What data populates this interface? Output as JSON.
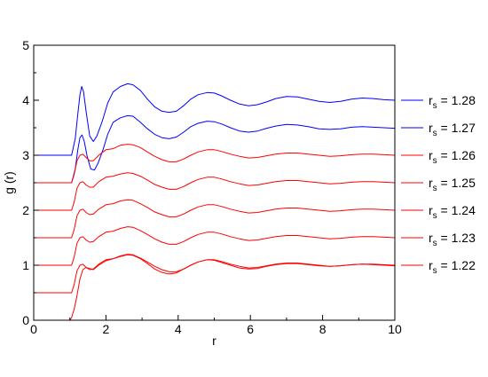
{
  "chart_data": {
    "type": "line",
    "xlabel": "r",
    "ylabel": "g (r)",
    "xlim": [
      0,
      10
    ],
    "ylim": [
      0,
      5
    ],
    "xticks": [
      "0",
      "2",
      "4",
      "6",
      "8",
      "10"
    ],
    "yticks": [
      "0",
      "1",
      "2",
      "3",
      "4",
      "5"
    ],
    "grid": false,
    "legend_position": "right",
    "colors": {
      "blue": "#0000ff",
      "red": "#ff0000"
    },
    "series": [
      {
        "name": "r_s = 1.28",
        "legend_base": "r",
        "legend_sub": "s",
        "legend_value": " = 1.28",
        "color": "#0000ff",
        "x": [
          0,
          1.05,
          1.15,
          1.22,
          1.28,
          1.33,
          1.38,
          1.45,
          1.55,
          1.65,
          1.75,
          1.9,
          2.05,
          2.2,
          2.4,
          2.6,
          2.75,
          2.95,
          3.15,
          3.35,
          3.55,
          3.75,
          3.95,
          4.15,
          4.35,
          4.55,
          4.8,
          5.0,
          5.2,
          5.45,
          5.7,
          5.95,
          6.2,
          6.45,
          6.7,
          7.0,
          7.3,
          7.6,
          7.9,
          8.2,
          8.5,
          8.8,
          9.1,
          9.4,
          9.7,
          10.0
        ],
        "y": [
          3.0,
          3.0,
          3.3,
          3.75,
          4.1,
          4.25,
          4.15,
          3.8,
          3.35,
          3.25,
          3.35,
          3.62,
          3.95,
          4.15,
          4.25,
          4.3,
          4.28,
          4.18,
          4.02,
          3.88,
          3.8,
          3.78,
          3.8,
          3.9,
          4.02,
          4.1,
          4.14,
          4.13,
          4.08,
          4.0,
          3.93,
          3.9,
          3.92,
          3.97,
          4.03,
          4.07,
          4.06,
          4.02,
          3.98,
          3.96,
          3.98,
          4.02,
          4.04,
          4.03,
          4.01,
          4.0
        ]
      },
      {
        "name": "r_s = 1.27",
        "legend_base": "r",
        "legend_sub": "s",
        "legend_value": " = 1.27",
        "color": "#0000ff",
        "x": [
          0,
          1.05,
          1.15,
          1.22,
          1.28,
          1.34,
          1.4,
          1.48,
          1.58,
          1.68,
          1.78,
          1.92,
          2.05,
          2.2,
          2.4,
          2.6,
          2.75,
          2.95,
          3.15,
          3.35,
          3.55,
          3.75,
          3.95,
          4.15,
          4.35,
          4.55,
          4.8,
          5.0,
          5.2,
          5.45,
          5.7,
          5.95,
          6.2,
          6.45,
          6.7,
          7.0,
          7.3,
          7.6,
          7.9,
          8.2,
          8.5,
          8.8,
          9.1,
          9.4,
          9.7,
          10.0
        ],
        "y": [
          2.5,
          2.5,
          2.75,
          3.1,
          3.32,
          3.37,
          3.25,
          2.98,
          2.75,
          2.73,
          2.85,
          3.1,
          3.38,
          3.6,
          3.68,
          3.72,
          3.71,
          3.6,
          3.48,
          3.38,
          3.32,
          3.3,
          3.33,
          3.42,
          3.52,
          3.58,
          3.62,
          3.61,
          3.57,
          3.5,
          3.44,
          3.42,
          3.44,
          3.49,
          3.53,
          3.56,
          3.55,
          3.52,
          3.48,
          3.47,
          3.48,
          3.51,
          3.52,
          3.51,
          3.5,
          3.49
        ]
      },
      {
        "name": "r_s = 1.26",
        "legend_base": "r",
        "legend_sub": "s",
        "legend_value": " = 1.26",
        "color": "#ff0000",
        "x": [
          0,
          1.05,
          1.12,
          1.2,
          1.28,
          1.36,
          1.45,
          1.55,
          1.65,
          1.8,
          2.0,
          2.2,
          2.4,
          2.6,
          2.75,
          2.95,
          3.15,
          3.35,
          3.55,
          3.75,
          3.95,
          4.15,
          4.35,
          4.55,
          4.8,
          5.0,
          5.2,
          5.45,
          5.7,
          5.95,
          6.2,
          6.45,
          6.7,
          7.0,
          7.3,
          7.6,
          7.9,
          8.2,
          8.5,
          8.8,
          9.1,
          9.4,
          9.7,
          10.0
        ],
        "y": [
          2.5,
          2.5,
          2.65,
          2.9,
          3.0,
          3.02,
          2.96,
          2.9,
          2.9,
          3.0,
          3.1,
          3.12,
          3.18,
          3.2,
          3.19,
          3.14,
          3.06,
          2.98,
          2.92,
          2.88,
          2.88,
          2.93,
          3.0,
          3.06,
          3.1,
          3.1,
          3.07,
          3.02,
          2.98,
          2.95,
          2.96,
          2.99,
          3.02,
          3.04,
          3.04,
          3.02,
          3.0,
          2.98,
          2.99,
          3.01,
          3.02,
          3.02,
          3.01,
          3.0
        ]
      },
      {
        "name": "r_s = 1.25",
        "legend_base": "r",
        "legend_sub": "s",
        "legend_value": " = 1.25",
        "color": "#ff0000",
        "x": [
          0,
          1.05,
          1.12,
          1.2,
          1.28,
          1.36,
          1.45,
          1.55,
          1.65,
          1.8,
          2.0,
          2.2,
          2.4,
          2.6,
          2.75,
          2.95,
          3.15,
          3.35,
          3.55,
          3.75,
          3.95,
          4.15,
          4.35,
          4.55,
          4.8,
          5.0,
          5.2,
          5.45,
          5.7,
          5.95,
          6.2,
          6.45,
          6.7,
          7.0,
          7.3,
          7.6,
          7.9,
          8.2,
          8.5,
          8.8,
          9.1,
          9.4,
          9.7,
          10.0
        ],
        "y": [
          2.0,
          2.0,
          2.15,
          2.4,
          2.5,
          2.52,
          2.46,
          2.42,
          2.42,
          2.52,
          2.6,
          2.62,
          2.66,
          2.68,
          2.67,
          2.62,
          2.55,
          2.47,
          2.42,
          2.38,
          2.38,
          2.43,
          2.5,
          2.56,
          2.6,
          2.6,
          2.57,
          2.52,
          2.48,
          2.45,
          2.46,
          2.49,
          2.52,
          2.54,
          2.54,
          2.52,
          2.5,
          2.48,
          2.49,
          2.51,
          2.52,
          2.52,
          2.51,
          2.5
        ]
      },
      {
        "name": "r_s = 1.24",
        "legend_base": "r",
        "legend_sub": "s",
        "legend_value": " = 1.24",
        "color": "#ff0000",
        "x": [
          0,
          1.05,
          1.12,
          1.2,
          1.28,
          1.36,
          1.45,
          1.55,
          1.65,
          1.8,
          2.0,
          2.2,
          2.4,
          2.6,
          2.75,
          2.95,
          3.15,
          3.35,
          3.55,
          3.75,
          3.95,
          4.15,
          4.35,
          4.55,
          4.8,
          5.0,
          5.2,
          5.45,
          5.7,
          5.95,
          6.2,
          6.45,
          6.7,
          7.0,
          7.3,
          7.6,
          7.9,
          8.2,
          8.5,
          8.8,
          9.1,
          9.4,
          9.7,
          10.0
        ],
        "y": [
          1.5,
          1.5,
          1.65,
          1.9,
          2.0,
          2.02,
          1.96,
          1.92,
          1.93,
          2.02,
          2.1,
          2.12,
          2.17,
          2.19,
          2.18,
          2.12,
          2.05,
          1.97,
          1.92,
          1.88,
          1.88,
          1.93,
          2.0,
          2.06,
          2.1,
          2.1,
          2.07,
          2.02,
          1.98,
          1.95,
          1.96,
          1.99,
          2.02,
          2.04,
          2.04,
          2.02,
          2.0,
          1.98,
          1.99,
          2.01,
          2.02,
          2.02,
          2.01,
          2.0
        ]
      },
      {
        "name": "r_s = 1.23",
        "legend_base": "r",
        "legend_sub": "s",
        "legend_value": " = 1.23",
        "color": "#ff0000",
        "x": [
          0,
          1.05,
          1.12,
          1.2,
          1.28,
          1.36,
          1.45,
          1.55,
          1.65,
          1.8,
          2.0,
          2.2,
          2.4,
          2.6,
          2.75,
          2.95,
          3.15,
          3.35,
          3.55,
          3.75,
          3.95,
          4.15,
          4.35,
          4.55,
          4.8,
          5.0,
          5.2,
          5.45,
          5.7,
          5.95,
          6.2,
          6.45,
          6.7,
          7.0,
          7.3,
          7.6,
          7.9,
          8.2,
          8.5,
          8.8,
          9.1,
          9.4,
          9.7,
          10.0
        ],
        "y": [
          1.0,
          1.0,
          1.15,
          1.4,
          1.5,
          1.52,
          1.46,
          1.42,
          1.43,
          1.52,
          1.6,
          1.62,
          1.67,
          1.7,
          1.69,
          1.63,
          1.56,
          1.48,
          1.42,
          1.38,
          1.38,
          1.43,
          1.5,
          1.56,
          1.6,
          1.6,
          1.57,
          1.52,
          1.48,
          1.45,
          1.46,
          1.49,
          1.52,
          1.54,
          1.54,
          1.52,
          1.5,
          1.48,
          1.49,
          1.51,
          1.52,
          1.52,
          1.51,
          1.5
        ]
      },
      {
        "name": "r_s = 1.22",
        "legend_base": "r",
        "legend_sub": "s",
        "legend_value": " = 1.22",
        "color": "#ff0000",
        "x": [
          0,
          1.0,
          1.05,
          1.12,
          1.2,
          1.28,
          1.36,
          1.45,
          1.55,
          1.65,
          1.8,
          2.0,
          2.2,
          2.4,
          2.6,
          2.75,
          2.95,
          3.15,
          3.35,
          3.55,
          3.75,
          3.95,
          4.15,
          4.35,
          4.55,
          4.8,
          5.0,
          5.2,
          5.45,
          5.7,
          5.95,
          6.2,
          6.45,
          6.7,
          7.0,
          7.3,
          7.6,
          7.9,
          8.2,
          8.5,
          8.8,
          9.1,
          9.4,
          9.7,
          10.0
        ],
        "y": [
          0.0,
          0.0,
          0.05,
          0.2,
          0.45,
          0.75,
          0.92,
          0.96,
          0.94,
          0.92,
          1.0,
          1.08,
          1.12,
          1.16,
          1.19,
          1.18,
          1.12,
          1.03,
          0.93,
          0.87,
          0.84,
          0.86,
          0.93,
          1.0,
          1.06,
          1.1,
          1.09,
          1.05,
          1.0,
          0.95,
          0.93,
          0.94,
          0.98,
          1.01,
          1.03,
          1.03,
          1.01,
          0.99,
          0.98,
          0.99,
          1.01,
          1.02,
          1.01,
          1.0,
          0.99
        ]
      },
      {
        "name": "",
        "color": "#ff0000",
        "x": [
          0,
          1.05,
          1.12,
          1.2,
          1.28,
          1.36,
          1.45,
          1.55,
          1.65,
          1.8,
          2.0,
          2.2,
          2.4,
          2.6,
          2.75,
          2.95,
          3.15,
          3.35,
          3.55,
          3.75,
          3.95,
          4.15,
          4.35,
          4.55,
          4.8,
          5.0,
          5.2,
          5.45,
          5.7,
          5.95,
          6.2,
          6.45,
          6.7,
          7.0,
          7.3,
          7.6,
          7.9,
          8.2,
          8.5,
          8.8,
          9.1,
          9.4,
          9.7,
          10.0
        ],
        "y": [
          0.5,
          0.5,
          0.65,
          0.9,
          1.0,
          1.02,
          0.96,
          0.92,
          0.93,
          1.02,
          1.1,
          1.12,
          1.17,
          1.2,
          1.19,
          1.13,
          1.06,
          0.98,
          0.92,
          0.88,
          0.88,
          0.93,
          1.0,
          1.06,
          1.1,
          1.1,
          1.07,
          1.02,
          0.98,
          0.95,
          0.96,
          0.99,
          1.02,
          1.04,
          1.04,
          1.02,
          1.0,
          0.98,
          0.99,
          1.01,
          1.02,
          1.02,
          1.01,
          1.0
        ]
      }
    ]
  }
}
